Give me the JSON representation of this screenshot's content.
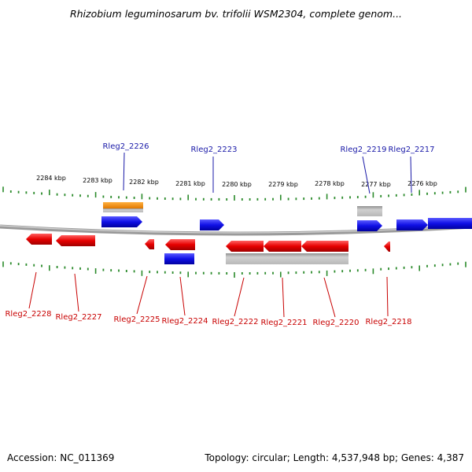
{
  "title": "Rhizobium leguminosarum bv. trifolii WSM2304, complete genom...",
  "footer": {
    "accession": "Accession: NC_011369",
    "stats": "Topology: circular; Length: 4,537,948 bp; Genes: 4,387"
  },
  "colors": {
    "forward": "#1010e6",
    "reverse": "#e60000",
    "orange": "#f08c00",
    "gray": "#b4b4b4",
    "tick": "#2a8a2a",
    "backbone": "#8c8c8c",
    "label_forward": "#1a1aa8",
    "label_reverse": "#c80000"
  },
  "ruler_labels": [
    "2284 kbp",
    "2283 kbp",
    "2282 kbp",
    "2281 kbp",
    "2280 kbp",
    "2279 kbp",
    "2278 kbp",
    "2277 kbp",
    "2276 kbp"
  ],
  "genes_forward": [
    "Rleg2_2226",
    "Rleg2_2223",
    "Rleg2_2219",
    "Rleg2_2217"
  ],
  "genes_reverse": [
    "Rleg2_2228",
    "Rleg2_2227",
    "Rleg2_2225",
    "Rleg2_2224",
    "Rleg2_2222",
    "Rleg2_2221",
    "Rleg2_2220",
    "Rleg2_2218"
  ]
}
